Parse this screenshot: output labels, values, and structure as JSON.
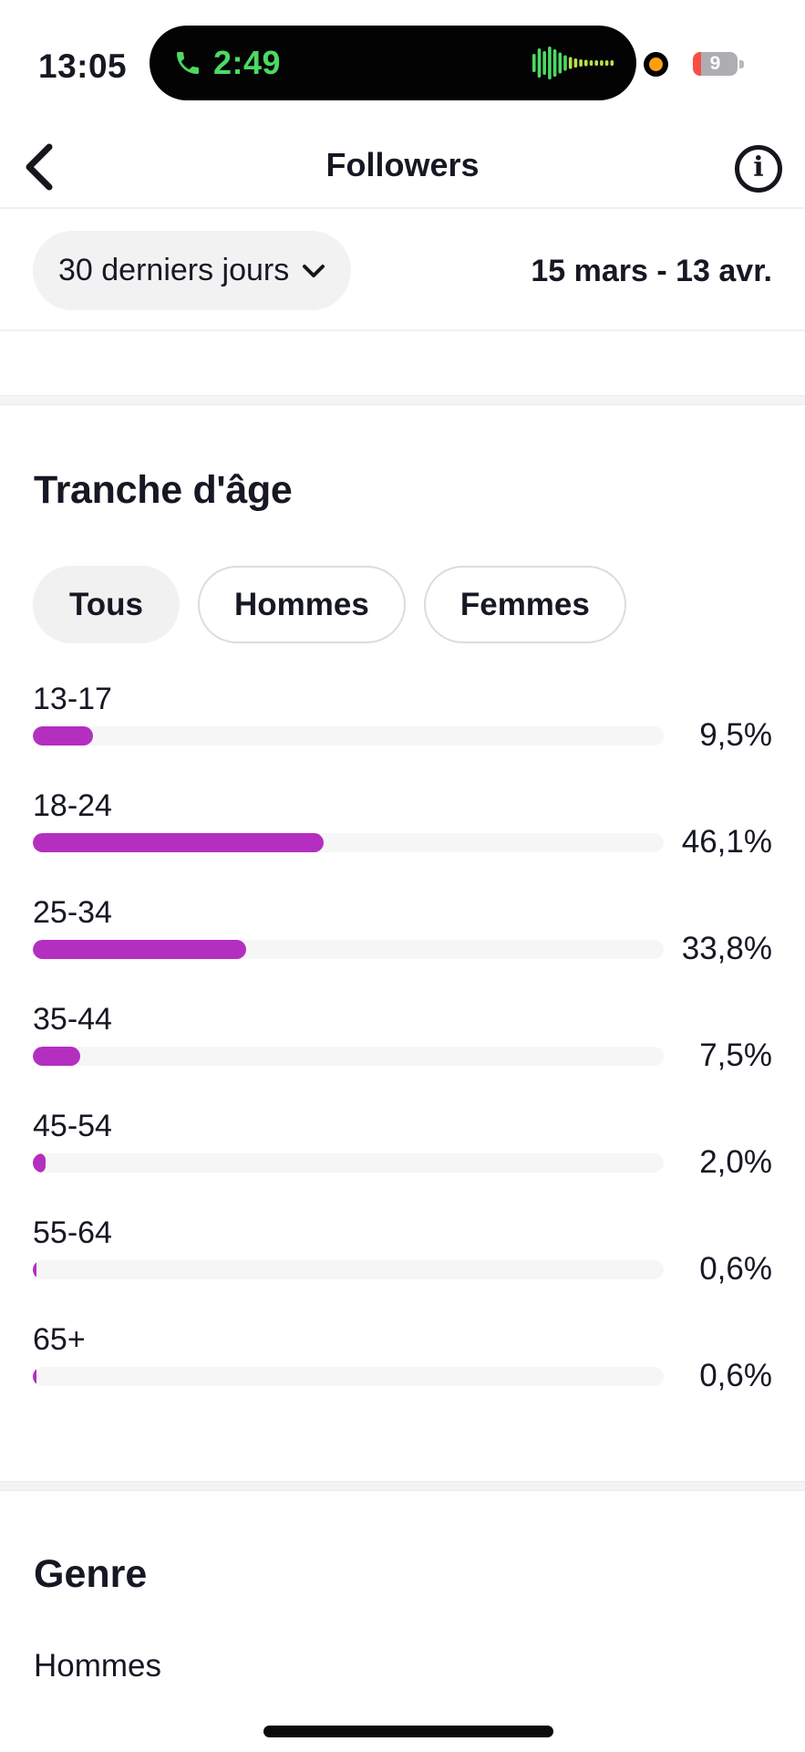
{
  "status_bar": {
    "time": "13:05",
    "call": {
      "duration": "2:49"
    },
    "battery": {
      "percent": "9"
    }
  },
  "nav": {
    "title": "Followers"
  },
  "filter": {
    "period_label": "30 derniers jours",
    "date_range": "15 mars - 13 avr."
  },
  "age_section": {
    "title": "Tranche d'âge",
    "tabs": [
      {
        "label": "Tous",
        "selected": true
      },
      {
        "label": "Hommes",
        "selected": false
      },
      {
        "label": "Femmes",
        "selected": false
      }
    ]
  },
  "chart_data": {
    "type": "bar",
    "orientation": "horizontal",
    "title": "Tranche d'âge",
    "categories": [
      "13-17",
      "18-24",
      "25-34",
      "35-44",
      "45-54",
      "55-64",
      "65+"
    ],
    "values": [
      9.5,
      46.1,
      33.8,
      7.5,
      2.0,
      0.6,
      0.6
    ],
    "value_labels": [
      "9,5%",
      "46,1%",
      "33,8%",
      "7,5%",
      "2,0%",
      "0,6%",
      "0,6%"
    ],
    "xlim": [
      0,
      100
    ],
    "grid": false,
    "legend": "none",
    "bar_color": "#b42fc0",
    "track_color": "#f6f6f7"
  },
  "genre_section": {
    "title": "Genre",
    "rows": [
      {
        "label": "Hommes"
      }
    ]
  },
  "colors": {
    "accent_magenta": "#b42fc0",
    "call_green": "#4cd964",
    "mic_orange": "#ff9f0a",
    "battery_red": "#fb4e43",
    "text": "#161823"
  }
}
